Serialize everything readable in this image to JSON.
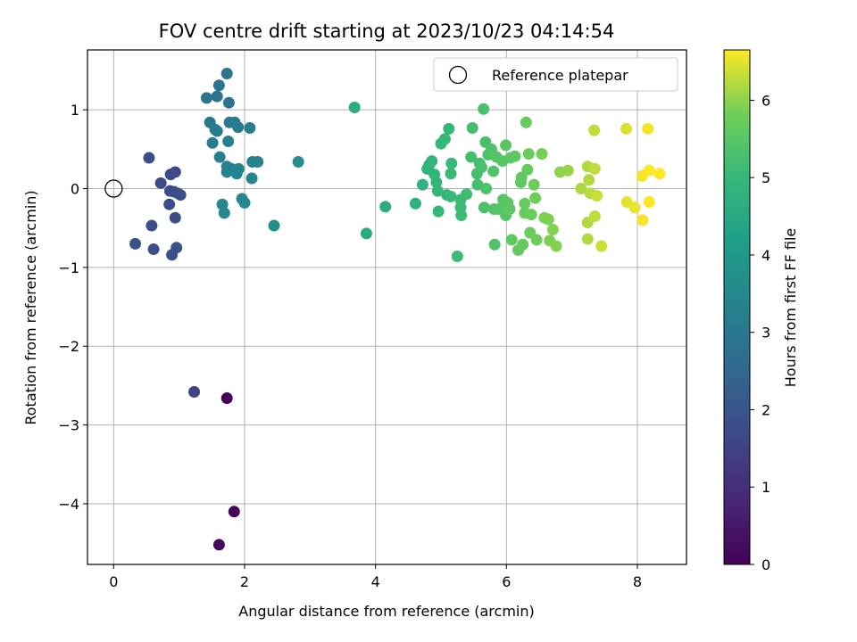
{
  "chart_data": {
    "type": "scatter",
    "title": "FOV centre drift starting at 2023/10/23 04:14:54",
    "xlabel": "Angular distance from reference (arcmin)",
    "ylabel": "Rotation from reference (arcmin)",
    "xlim": [
      -0.4,
      8.75
    ],
    "ylim": [
      -4.77,
      1.76
    ],
    "xticks": [
      0,
      2,
      4,
      6,
      8
    ],
    "yticks": [
      -4,
      -3,
      -2,
      -1,
      0,
      1
    ],
    "xtick_labels": [
      "0",
      "2",
      "4",
      "6",
      "8"
    ],
    "ytick_labels": [
      "−4",
      "−3",
      "−2",
      "−1",
      "0",
      "1"
    ],
    "grid": true,
    "colormap": "viridis",
    "colorbar": {
      "label": "Hours from first FF file",
      "range": [
        0,
        6.65
      ],
      "ticks": [
        0,
        1,
        2,
        3,
        4,
        5,
        6
      ],
      "tick_labels": [
        "0",
        "1",
        "2",
        "3",
        "4",
        "5",
        "6"
      ]
    },
    "legend": {
      "position": "top-right",
      "entries": [
        "Reference platepar"
      ]
    },
    "reference_point": {
      "x": 0,
      "y": 0,
      "label": "Reference platepar"
    },
    "points": [
      {
        "x": 1.73,
        "y": -2.66,
        "hours": 0.05
      },
      {
        "x": 1.84,
        "y": -4.1,
        "hours": 0.1
      },
      {
        "x": 1.61,
        "y": -4.52,
        "hours": 0.15
      },
      {
        "x": 1.23,
        "y": -2.58,
        "hours": 1.5
      },
      {
        "x": 0.54,
        "y": 0.39,
        "hours": 1.8
      },
      {
        "x": 0.72,
        "y": 0.07,
        "hours": 1.7
      },
      {
        "x": 0.87,
        "y": 0.18,
        "hours": 1.75
      },
      {
        "x": 0.94,
        "y": 0.21,
        "hours": 1.7
      },
      {
        "x": 0.86,
        "y": -0.03,
        "hours": 1.8
      },
      {
        "x": 0.92,
        "y": -0.04,
        "hours": 1.75
      },
      {
        "x": 0.98,
        "y": -0.06,
        "hours": 1.8
      },
      {
        "x": 1.02,
        "y": -0.08,
        "hours": 1.8
      },
      {
        "x": 0.85,
        "y": -0.2,
        "hours": 1.8
      },
      {
        "x": 0.94,
        "y": -0.37,
        "hours": 1.8
      },
      {
        "x": 0.58,
        "y": -0.47,
        "hours": 1.85
      },
      {
        "x": 0.33,
        "y": -0.7,
        "hours": 1.9
      },
      {
        "x": 0.61,
        "y": -0.77,
        "hours": 1.85
      },
      {
        "x": 0.96,
        "y": -0.75,
        "hours": 1.9
      },
      {
        "x": 0.89,
        "y": -0.84,
        "hours": 1.85
      },
      {
        "x": 1.73,
        "y": 1.46,
        "hours": 2.9
      },
      {
        "x": 1.61,
        "y": 1.31,
        "hours": 2.85
      },
      {
        "x": 1.42,
        "y": 1.15,
        "hours": 2.8
      },
      {
        "x": 1.58,
        "y": 1.17,
        "hours": 2.85
      },
      {
        "x": 1.76,
        "y": 1.09,
        "hours": 2.9
      },
      {
        "x": 1.47,
        "y": 0.84,
        "hours": 3.0
      },
      {
        "x": 1.77,
        "y": 0.84,
        "hours": 3.0
      },
      {
        "x": 1.85,
        "y": 0.84,
        "hours": 3.05
      },
      {
        "x": 1.9,
        "y": 0.78,
        "hours": 3.1
      },
      {
        "x": 2.08,
        "y": 0.77,
        "hours": 3.2
      },
      {
        "x": 1.55,
        "y": 0.75,
        "hours": 3.05
      },
      {
        "x": 1.58,
        "y": 0.73,
        "hours": 3.1
      },
      {
        "x": 1.51,
        "y": 0.58,
        "hours": 3.1
      },
      {
        "x": 1.75,
        "y": 0.6,
        "hours": 3.2
      },
      {
        "x": 1.62,
        "y": 0.4,
        "hours": 3.2
      },
      {
        "x": 2.12,
        "y": 0.34,
        "hours": 3.3
      },
      {
        "x": 2.2,
        "y": 0.34,
        "hours": 3.35
      },
      {
        "x": 1.73,
        "y": 0.28,
        "hours": 3.3
      },
      {
        "x": 1.8,
        "y": 0.25,
        "hours": 3.35
      },
      {
        "x": 1.91,
        "y": 0.25,
        "hours": 3.4
      },
      {
        "x": 1.73,
        "y": 0.21,
        "hours": 3.35
      },
      {
        "x": 1.88,
        "y": 0.19,
        "hours": 3.4
      },
      {
        "x": 2.11,
        "y": 0.13,
        "hours": 3.45
      },
      {
        "x": 1.96,
        "y": -0.13,
        "hours": 3.4
      },
      {
        "x": 2.0,
        "y": -0.18,
        "hours": 3.45
      },
      {
        "x": 1.66,
        "y": -0.2,
        "hours": 3.5
      },
      {
        "x": 1.69,
        "y": -0.31,
        "hours": 3.5
      },
      {
        "x": 2.82,
        "y": 0.34,
        "hours": 3.7
      },
      {
        "x": 2.45,
        "y": -0.47,
        "hours": 3.75
      },
      {
        "x": 3.68,
        "y": 1.03,
        "hours": 4.6
      },
      {
        "x": 4.15,
        "y": -0.23,
        "hours": 4.6
      },
      {
        "x": 3.86,
        "y": -0.57,
        "hours": 4.55
      },
      {
        "x": 4.61,
        "y": -0.19,
        "hours": 4.75
      },
      {
        "x": 4.72,
        "y": 0.05,
        "hours": 4.8
      },
      {
        "x": 4.79,
        "y": 0.25,
        "hours": 4.85
      },
      {
        "x": 4.82,
        "y": 0.3,
        "hours": 4.85
      },
      {
        "x": 4.86,
        "y": 0.35,
        "hours": 4.9
      },
      {
        "x": 4.9,
        "y": 0.18,
        "hours": 4.9
      },
      {
        "x": 4.93,
        "y": 0.08,
        "hours": 4.95
      },
      {
        "x": 4.95,
        "y": -0.03,
        "hours": 4.95
      },
      {
        "x": 4.96,
        "y": -0.29,
        "hours": 4.95
      },
      {
        "x": 5.0,
        "y": 0.57,
        "hours": 5.0
      },
      {
        "x": 5.06,
        "y": 0.63,
        "hours": 5.0
      },
      {
        "x": 5.12,
        "y": 0.76,
        "hours": 5.0
      },
      {
        "x": 5.09,
        "y": -0.08,
        "hours": 5.0
      },
      {
        "x": 5.15,
        "y": 0.19,
        "hours": 5.05
      },
      {
        "x": 5.16,
        "y": 0.32,
        "hours": 5.05
      },
      {
        "x": 5.15,
        "y": -0.1,
        "hours": 5.05
      },
      {
        "x": 5.25,
        "y": -0.86,
        "hours": 5.1
      },
      {
        "x": 5.3,
        "y": -0.14,
        "hours": 5.1
      },
      {
        "x": 5.3,
        "y": -0.24,
        "hours": 5.1
      },
      {
        "x": 5.31,
        "y": -0.34,
        "hours": 5.1
      },
      {
        "x": 5.39,
        "y": -0.07,
        "hours": 5.15
      },
      {
        "x": 5.46,
        "y": 0.4,
        "hours": 5.2
      },
      {
        "x": 5.48,
        "y": 0.77,
        "hours": 5.2
      },
      {
        "x": 5.55,
        "y": 0.19,
        "hours": 5.25
      },
      {
        "x": 5.56,
        "y": 0.05,
        "hours": 5.25
      },
      {
        "x": 5.59,
        "y": 0.32,
        "hours": 5.25
      },
      {
        "x": 5.62,
        "y": 0.27,
        "hours": 5.3
      },
      {
        "x": 5.65,
        "y": 1.01,
        "hours": 5.3
      },
      {
        "x": 5.66,
        "y": -0.24,
        "hours": 5.3
      },
      {
        "x": 5.68,
        "y": 0.59,
        "hours": 5.3
      },
      {
        "x": 5.69,
        "y": 0.0,
        "hours": 5.35
      },
      {
        "x": 5.72,
        "y": 0.43,
        "hours": 5.35
      },
      {
        "x": 5.77,
        "y": 0.5,
        "hours": 5.4
      },
      {
        "x": 5.8,
        "y": 0.22,
        "hours": 5.4
      },
      {
        "x": 5.81,
        "y": -0.26,
        "hours": 5.4
      },
      {
        "x": 5.82,
        "y": -0.71,
        "hours": 5.4
      },
      {
        "x": 5.85,
        "y": 0.4,
        "hours": 5.45
      },
      {
        "x": 5.88,
        "y": -0.26,
        "hours": 5.45
      },
      {
        "x": 5.94,
        "y": 0.35,
        "hours": 5.5
      },
      {
        "x": 5.95,
        "y": -0.14,
        "hours": 5.5
      },
      {
        "x": 5.99,
        "y": 0.55,
        "hours": 5.5
      },
      {
        "x": 5.99,
        "y": -0.34,
        "hours": 5.5
      },
      {
        "x": 6.02,
        "y": -0.18,
        "hours": 5.55
      },
      {
        "x": 6.05,
        "y": -0.26,
        "hours": 5.55
      },
      {
        "x": 6.06,
        "y": 0.39,
        "hours": 5.55
      },
      {
        "x": 6.08,
        "y": -0.65,
        "hours": 5.6
      },
      {
        "x": 6.13,
        "y": 0.41,
        "hours": 5.6
      },
      {
        "x": 6.18,
        "y": -0.78,
        "hours": 5.6
      },
      {
        "x": 6.22,
        "y": 0.08,
        "hours": 5.65
      },
      {
        "x": 6.23,
        "y": 0.14,
        "hours": 5.65
      },
      {
        "x": 6.25,
        "y": -0.71,
        "hours": 5.65
      },
      {
        "x": 6.28,
        "y": -0.31,
        "hours": 5.7
      },
      {
        "x": 6.28,
        "y": -0.19,
        "hours": 5.7
      },
      {
        "x": 6.3,
        "y": 0.84,
        "hours": 5.7
      },
      {
        "x": 6.32,
        "y": 0.24,
        "hours": 5.7
      },
      {
        "x": 6.34,
        "y": 0.44,
        "hours": 5.75
      },
      {
        "x": 6.36,
        "y": -0.56,
        "hours": 5.75
      },
      {
        "x": 6.38,
        "y": -0.33,
        "hours": 5.75
      },
      {
        "x": 6.42,
        "y": 0.05,
        "hours": 5.8
      },
      {
        "x": 6.44,
        "y": -0.12,
        "hours": 5.8
      },
      {
        "x": 6.46,
        "y": -0.65,
        "hours": 5.8
      },
      {
        "x": 6.54,
        "y": 0.44,
        "hours": 5.85
      },
      {
        "x": 6.58,
        "y": -0.37,
        "hours": 5.9
      },
      {
        "x": 6.64,
        "y": -0.39,
        "hours": 5.9
      },
      {
        "x": 6.66,
        "y": -0.66,
        "hours": 5.9
      },
      {
        "x": 6.71,
        "y": -0.52,
        "hours": 5.95
      },
      {
        "x": 6.76,
        "y": -0.73,
        "hours": 5.95
      },
      {
        "x": 6.82,
        "y": 0.21,
        "hours": 6.0
      },
      {
        "x": 6.94,
        "y": 0.23,
        "hours": 6.05
      },
      {
        "x": 7.14,
        "y": 0.0,
        "hours": 6.15
      },
      {
        "x": 7.24,
        "y": 0.28,
        "hours": 6.2
      },
      {
        "x": 7.24,
        "y": -0.43,
        "hours": 6.2
      },
      {
        "x": 7.24,
        "y": -0.64,
        "hours": 6.2
      },
      {
        "x": 7.26,
        "y": 0.11,
        "hours": 6.2
      },
      {
        "x": 7.28,
        "y": -0.06,
        "hours": 6.25
      },
      {
        "x": 7.34,
        "y": 0.74,
        "hours": 6.3
      },
      {
        "x": 7.35,
        "y": 0.25,
        "hours": 6.3
      },
      {
        "x": 7.35,
        "y": -0.35,
        "hours": 6.3
      },
      {
        "x": 7.38,
        "y": -0.09,
        "hours": 6.35
      },
      {
        "x": 7.45,
        "y": -0.73,
        "hours": 6.35
      },
      {
        "x": 7.83,
        "y": 0.76,
        "hours": 6.45
      },
      {
        "x": 7.84,
        "y": -0.17,
        "hours": 6.5
      },
      {
        "x": 7.96,
        "y": -0.24,
        "hours": 6.55
      },
      {
        "x": 8.07,
        "y": 0.16,
        "hours": 6.6
      },
      {
        "x": 8.08,
        "y": -0.4,
        "hours": 6.6
      },
      {
        "x": 8.16,
        "y": 0.76,
        "hours": 6.6
      },
      {
        "x": 8.18,
        "y": 0.23,
        "hours": 6.65
      },
      {
        "x": 8.18,
        "y": -0.17,
        "hours": 6.65
      },
      {
        "x": 8.34,
        "y": 0.19,
        "hours": 6.65
      }
    ]
  }
}
